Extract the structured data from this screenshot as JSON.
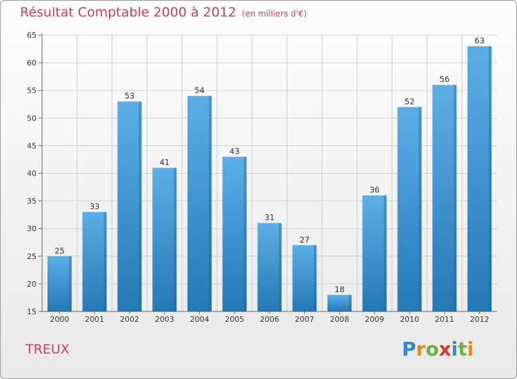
{
  "title": "Résultat Comptable 2000 à 2012",
  "subtitle": "(en milliers d'€)",
  "commune": "TREUX",
  "logo": {
    "letters": [
      {
        "ch": "P",
        "color": "#2a8ccf"
      },
      {
        "ch": "r",
        "color": "#e78a1c"
      },
      {
        "ch": "o",
        "color": "#6cb33f"
      },
      {
        "ch": "x",
        "color": "#d9382a"
      },
      {
        "ch": "i",
        "color": "#2a8ccf"
      },
      {
        "ch": "t",
        "color": "#6cb33f"
      },
      {
        "ch": "i",
        "color": "#e78a1c"
      }
    ]
  },
  "colors": {
    "title": "#c93f5d",
    "bar_top": "#5caee6",
    "bar_bottom": "#2479b5",
    "grid": "#cfcfcf",
    "axis": "#666666"
  },
  "chart_data": {
    "type": "bar",
    "title": "Résultat Comptable 2000 à 2012",
    "xlabel": "",
    "ylabel": "",
    "categories": [
      "2000",
      "2001",
      "2002",
      "2003",
      "2004",
      "2005",
      "2006",
      "2007",
      "2008",
      "2009",
      "2010",
      "2011",
      "2012"
    ],
    "values": [
      25,
      33,
      53,
      41,
      54,
      43,
      31,
      27,
      18,
      36,
      52,
      56,
      63
    ],
    "ylim": [
      15,
      65
    ],
    "yticks": [
      15,
      20,
      25,
      30,
      35,
      40,
      45,
      50,
      55,
      60,
      65
    ],
    "grid": true,
    "data_labels": true
  }
}
